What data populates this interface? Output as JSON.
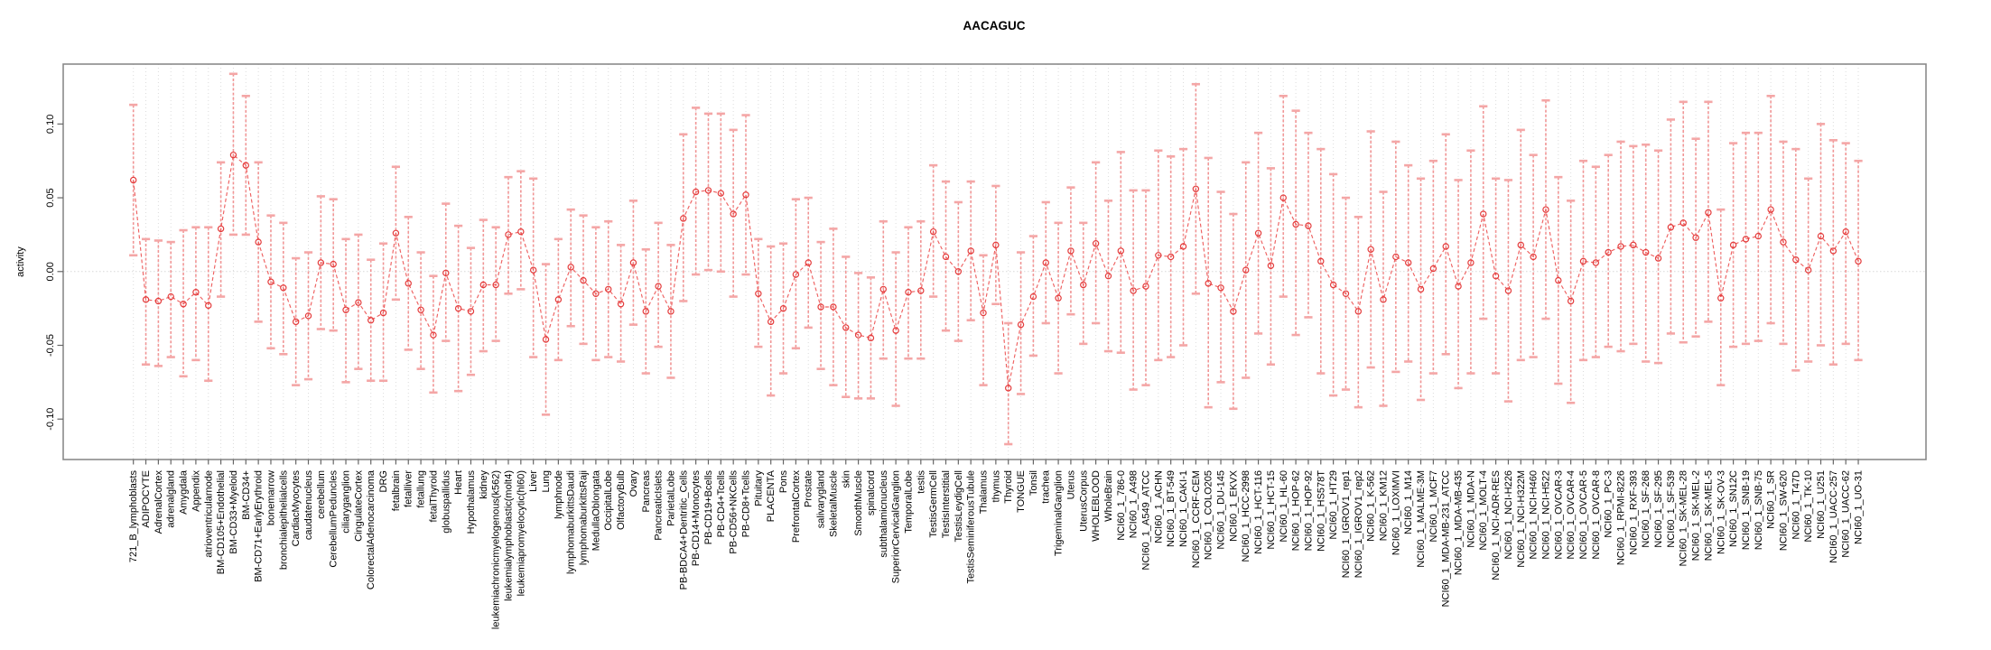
{
  "title": "AACAGUC",
  "axes": {
    "y_label": "activity",
    "y_tick_labels": [
      "0.10",
      "0.05",
      "0.00",
      "-0.05",
      "-0.10"
    ]
  },
  "colors": {
    "point_stroke": "#e43c3c",
    "series_line": "#ec5050",
    "error_stem": "#ef7e7e",
    "error_cap": "#f4a6a6",
    "grid_line": "#dcdcdc",
    "zero_line": "#d8d8d8",
    "plot_border": "#8a8a8a",
    "axis_tick": "#666666",
    "text": "#000000"
  },
  "chart_data": {
    "type": "scatter",
    "title": "AACAGUC",
    "xlabel": "",
    "ylabel": "activity",
    "ylim": [
      -0.1274,
      0.1406
    ],
    "yticks": [
      0.1,
      0.05,
      0.0,
      -0.05,
      -0.1
    ],
    "grid": "vertical dotted gridline per category; horizontal dotted line at y=0 only",
    "legend_position": "none",
    "marker": "open-circle",
    "line_style": "dashed",
    "error_bars": true,
    "categories": [
      "721_B_lymphoblasts",
      "ADIPOCYTE",
      "AdrenalCortex",
      "adrenalgland",
      "Amygdala",
      "Appendix",
      "atrioventricularnode",
      "BM-CD105+Endothelial",
      "BM-CD33+Myeloid",
      "BM-CD34+",
      "BM-CD71+EarlyErythroid",
      "bonemarrow",
      "bronchialepithelialcells",
      "CardiacMyocytes",
      "caudatenucleus",
      "cerebellum",
      "CerebellumPeduncles",
      "ciliaryganglion",
      "CingulateCortex",
      "ColorectalAdenocarcinoma",
      "DRG",
      "fetalbrain",
      "fetalliver",
      "fetallung",
      "fetalThyroid",
      "globuspallidus",
      "Heart",
      "Hypothalamus",
      "kidney",
      "leukemiachronicmyelogenous(k562)",
      "leukemialymphoblastic(molt4)",
      "leukemiapromyelocytic(hl60)",
      "Liver",
      "Lung",
      "lymphnode",
      "lymphomaburkittsDaudi",
      "lymphomaburkittsRaji",
      "MedullaOblongata",
      "OccipitalLobe",
      "OlfactoryBulb",
      "Ovary",
      "Pancreas",
      "PancreaticIslets",
      "ParietalLobe",
      "PB-BDCA4+Dentritic_Cells",
      "PB-CD14+Monocytes",
      "PB-CD19+Bcells",
      "PB-CD4+Tcells",
      "PB-CD56+NKCells",
      "PB-CD8+Tcells",
      "Pituitary",
      "PLACENTA",
      "Pons",
      "PrefrontalCortex",
      "Prostate",
      "salivarygland",
      "SkeletalMuscle",
      "skin",
      "SmoothMuscle",
      "spinalcord",
      "subthalamicnucleus",
      "SuperiorCervicalGanglion",
      "TemporalLobe",
      "testis",
      "TestisGermCell",
      "TestisInterstitial",
      "TestisLeydigCell",
      "TestisSeminiferousTubule",
      "Thalamus",
      "thymus",
      "Thyroid",
      "TONGUE",
      "Tonsil",
      "trachea",
      "TrigeminalGanglion",
      "Uterus",
      "UterusCorpus",
      "WHOLEBLOOD",
      "WholeBrain",
      "NCI60_1_786-0",
      "NCI60_1_A498",
      "NCI60_1_A549_ATCC",
      "NCI60_1_ACHN",
      "NCI60_1_BT-549",
      "NCI60_1_CAKI-1",
      "NCI60_1_CCRF-CEM",
      "NCI60_1_COLO205",
      "NCI60_1_DU-145",
      "NCI60_1_EKVX",
      "NCI60_1_HCC-2998",
      "NCI60_1_HCT-116",
      "NCI60_1_HCT-15",
      "NCI60_1_HL-60",
      "NCI60_1_HOP-62",
      "NCI60_1_HOP-92",
      "NCI60_1_HS578T",
      "NCI60_1_HT29",
      "NCI60_1_IGROV1_rep1",
      "NCI60_1_IGROV1_rep2",
      "NCI60_1_K-562",
      "NCI60_1_KM12",
      "NCI60_1_LOXIMVI",
      "NCI60_1_M14",
      "NCI60_1_MALME-3M",
      "NCI60_1_MCF7",
      "NCI60_1_MDA-MB-231_ATCC",
      "NCI60_1_MDA-MB-435",
      "NCI60_1_MDA-N",
      "NCI60_1_MOLT-4",
      "NCI60_1_NCI-ADR-RES",
      "NCI60_1_NCI-H226",
      "NCI60_1_NCI-H322M",
      "NCI60_1_NCI-H460",
      "NCI60_1_NCI-H522",
      "NCI60_1_OVCAR-3",
      "NCI60_1_OVCAR-4",
      "NCI60_1_OVCAR-5",
      "NCI60_1_OVCAR-8",
      "NCI60_1_PC-3",
      "NCI60_1_RPMI-8226",
      "NCI60_1_RXF-393",
      "NCI60_1_SF-268",
      "NCI60_1_SF-295",
      "NCI60_1_SF-539",
      "NCI60_1_SK-MEL-28",
      "NCI60_1_SK-MEL-2",
      "NCI60_1_SK-MEL-5",
      "NCI60_1_SK-OV-3",
      "NCI60_1_SN12C",
      "NCI60_1_SNB-19",
      "NCI60_1_SNB-75",
      "NCI60_1_SR",
      "NCI60_1_SW-620",
      "NCI60_1_T47D",
      "NCI60_1_TK-10",
      "NCI60_1_U251",
      "NCI60_1_UACC-257",
      "NCI60_1_UACC-62",
      "NCI60_1_UO-31"
    ],
    "values": [
      0.062,
      -0.019,
      -0.02,
      -0.017,
      -0.022,
      -0.014,
      -0.023,
      0.029,
      0.079,
      0.072,
      0.02,
      -0.007,
      -0.011,
      -0.034,
      -0.03,
      0.006,
      0.005,
      -0.026,
      -0.021,
      -0.033,
      -0.028,
      0.026,
      -0.008,
      -0.026,
      -0.043,
      -0.001,
      -0.025,
      -0.027,
      -0.009,
      -0.009,
      0.025,
      0.027,
      0.001,
      -0.046,
      -0.019,
      0.003,
      -0.006,
      -0.015,
      -0.012,
      -0.022,
      0.006,
      -0.027,
      -0.01,
      -0.027,
      0.036,
      0.054,
      0.055,
      0.053,
      0.039,
      0.052,
      -0.015,
      -0.034,
      -0.025,
      -0.002,
      0.006,
      -0.024,
      -0.024,
      -0.038,
      -0.043,
      -0.045,
      -0.012,
      -0.04,
      -0.014,
      -0.013,
      0.027,
      0.01,
      0.0,
      0.014,
      -0.028,
      0.018,
      -0.079,
      -0.036,
      -0.017,
      0.006,
      -0.018,
      0.014,
      -0.009,
      0.019,
      -0.003,
      0.014,
      -0.013,
      -0.01,
      0.011,
      0.01,
      0.017,
      0.056,
      -0.008,
      -0.011,
      -0.027,
      0.001,
      0.026,
      0.004,
      0.05,
      0.032,
      0.031,
      0.007,
      -0.009,
      -0.015,
      -0.027,
      0.015,
      -0.019,
      0.01,
      0.006,
      -0.012,
      0.002,
      0.017,
      -0.01,
      0.006,
      0.039,
      -0.003,
      -0.013,
      0.018,
      0.01,
      0.042,
      -0.006,
      -0.02,
      0.007,
      0.006,
      0.013,
      0.017,
      0.018,
      0.013,
      0.009,
      0.03,
      0.033,
      0.023,
      0.04,
      -0.018,
      0.018,
      0.022,
      0.024,
      0.042,
      0.02,
      0.008,
      0.001,
      0.024,
      0.014,
      0.027,
      0.007
    ],
    "err_lo": [
      0.011,
      -0.063,
      -0.064,
      -0.058,
      -0.071,
      -0.06,
      -0.074,
      -0.017,
      0.025,
      0.025,
      -0.034,
      -0.052,
      -0.056,
      -0.077,
      -0.073,
      -0.039,
      -0.04,
      -0.075,
      -0.066,
      -0.074,
      -0.074,
      -0.019,
      -0.053,
      -0.066,
      -0.082,
      -0.047,
      -0.081,
      -0.07,
      -0.054,
      -0.047,
      -0.015,
      -0.012,
      -0.058,
      -0.097,
      -0.06,
      -0.037,
      -0.049,
      -0.06,
      -0.058,
      -0.061,
      -0.036,
      -0.069,
      -0.051,
      -0.072,
      -0.02,
      -0.002,
      0.001,
      0.0,
      -0.017,
      -0.002,
      -0.051,
      -0.084,
      -0.069,
      -0.052,
      -0.038,
      -0.066,
      -0.077,
      -0.085,
      -0.086,
      -0.086,
      -0.059,
      -0.091,
      -0.059,
      -0.059,
      -0.017,
      -0.04,
      -0.047,
      -0.033,
      -0.077,
      -0.022,
      -0.117,
      -0.083,
      -0.057,
      -0.035,
      -0.069,
      -0.029,
      -0.049,
      -0.035,
      -0.054,
      -0.055,
      -0.08,
      -0.077,
      -0.06,
      -0.058,
      -0.05,
      -0.015,
      -0.092,
      -0.075,
      -0.093,
      -0.072,
      -0.042,
      -0.063,
      -0.017,
      -0.043,
      -0.031,
      -0.069,
      -0.084,
      -0.08,
      -0.092,
      -0.065,
      -0.091,
      -0.068,
      -0.061,
      -0.087,
      -0.069,
      -0.056,
      -0.079,
      -0.069,
      -0.032,
      -0.069,
      -0.088,
      -0.06,
      -0.058,
      -0.032,
      -0.076,
      -0.089,
      -0.06,
      -0.058,
      -0.051,
      -0.054,
      -0.049,
      -0.061,
      -0.062,
      -0.042,
      -0.048,
      -0.044,
      -0.034,
      -0.077,
      -0.051,
      -0.049,
      -0.047,
      -0.035,
      -0.049,
      -0.067,
      -0.061,
      -0.05,
      -0.063,
      -0.049,
      -0.06
    ],
    "err_hi": [
      0.113,
      0.022,
      0.021,
      0.02,
      0.028,
      0.03,
      0.03,
      0.074,
      0.134,
      0.119,
      0.074,
      0.038,
      0.033,
      0.009,
      0.013,
      0.051,
      0.049,
      0.022,
      0.025,
      0.008,
      0.019,
      0.071,
      0.037,
      0.013,
      -0.003,
      0.046,
      0.031,
      0.016,
      0.035,
      0.03,
      0.064,
      0.068,
      0.063,
      0.005,
      0.022,
      0.042,
      0.038,
      0.03,
      0.034,
      0.018,
      0.048,
      0.015,
      0.033,
      0.018,
      0.093,
      0.111,
      0.107,
      0.107,
      0.096,
      0.106,
      0.022,
      0.017,
      0.019,
      0.049,
      0.05,
      0.02,
      0.029,
      0.01,
      -0.001,
      -0.004,
      0.034,
      0.013,
      0.03,
      0.034,
      0.072,
      0.061,
      0.047,
      0.061,
      0.011,
      0.058,
      -0.035,
      0.013,
      0.024,
      0.047,
      0.033,
      0.057,
      0.033,
      0.074,
      0.048,
      0.081,
      0.055,
      0.055,
      0.082,
      0.078,
      0.083,
      0.127,
      0.077,
      0.054,
      0.039,
      0.074,
      0.094,
      0.07,
      0.119,
      0.109,
      0.094,
      0.083,
      0.066,
      0.05,
      0.037,
      0.095,
      0.054,
      0.088,
      0.072,
      0.063,
      0.075,
      0.093,
      0.062,
      0.082,
      0.112,
      0.063,
      0.062,
      0.096,
      0.079,
      0.116,
      0.064,
      0.048,
      0.075,
      0.071,
      0.079,
      0.088,
      0.085,
      0.086,
      0.082,
      0.103,
      0.115,
      0.09,
      0.115,
      0.042,
      0.087,
      0.094,
      0.094,
      0.119,
      0.088,
      0.083,
      0.063,
      0.1,
      0.089,
      0.087,
      0.075
    ]
  }
}
